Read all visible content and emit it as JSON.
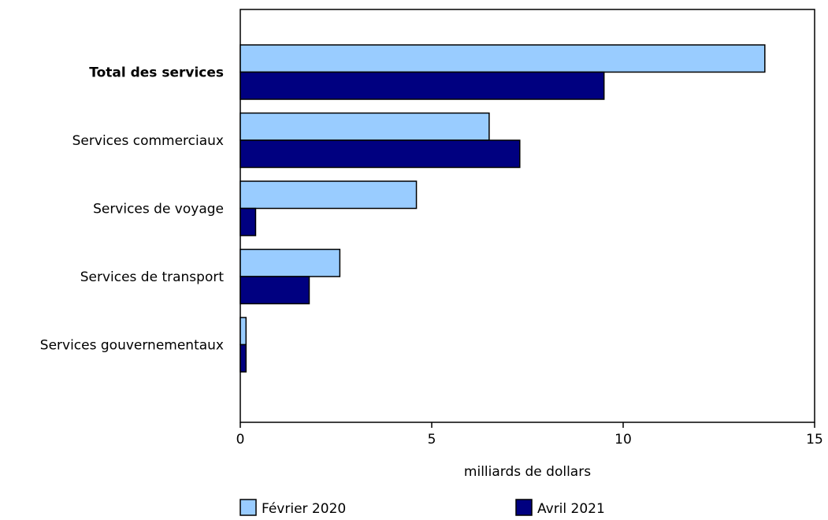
{
  "chart_data": {
    "type": "bar",
    "orientation": "horizontal",
    "categories": [
      "Total des services",
      "Services commerciaux",
      "Services de voyage",
      "Services de transport",
      "Services gouvernementaux"
    ],
    "bold_categories": [
      "Total des services"
    ],
    "series": [
      {
        "name": "Février 2020",
        "color": "#99ccff",
        "values": [
          13.7,
          6.5,
          4.6,
          2.6,
          0.15
        ]
      },
      {
        "name": "Avril 2021",
        "color": "#000080",
        "values": [
          9.5,
          7.3,
          0.4,
          1.8,
          0.15
        ]
      }
    ],
    "xlabel": "milliards de dollars",
    "ylabel": "",
    "xlim": [
      0,
      15
    ],
    "xticks": [
      0,
      5,
      10,
      15
    ],
    "grid": false,
    "legend_position": "bottom"
  }
}
